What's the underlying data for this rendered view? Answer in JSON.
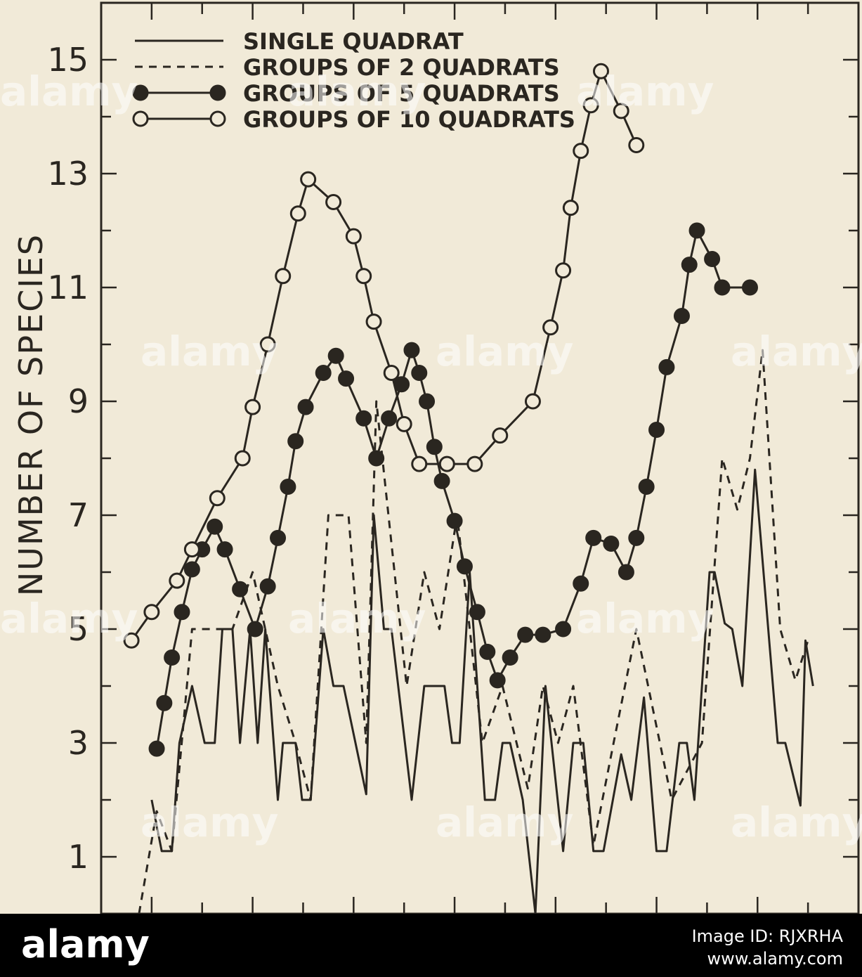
{
  "chart_data": {
    "type": "line",
    "title": "",
    "xlabel": "",
    "ylabel": "NUMBER OF SPECIES",
    "ylim": [
      0,
      16
    ],
    "y_ticks": [
      "1",
      "3",
      "5",
      "7",
      "9",
      "11",
      "13",
      "15"
    ],
    "grid": false,
    "legend_position": "top-left",
    "series": [
      {
        "name": "SINGLE QUADRAT",
        "style": "solid",
        "marker": "none",
        "points": [
          [
            1.0,
            2
          ],
          [
            1.2,
            1.1
          ],
          [
            1.4,
            1.1
          ],
          [
            1.55,
            3
          ],
          [
            1.8,
            4
          ],
          [
            2.05,
            3
          ],
          [
            2.25,
            3
          ],
          [
            2.4,
            5
          ],
          [
            2.6,
            5
          ],
          [
            2.75,
            3
          ],
          [
            2.95,
            5
          ],
          [
            3.1,
            3
          ],
          [
            3.25,
            5
          ],
          [
            3.5,
            2
          ],
          [
            3.6,
            3
          ],
          [
            3.85,
            3
          ],
          [
            3.98,
            2
          ],
          [
            4.15,
            2
          ],
          [
            4.4,
            5
          ],
          [
            4.6,
            4
          ],
          [
            4.8,
            4
          ],
          [
            5.25,
            2.1
          ],
          [
            5.4,
            7
          ],
          [
            5.6,
            5
          ],
          [
            5.75,
            5
          ],
          [
            6.15,
            2
          ],
          [
            6.4,
            4
          ],
          [
            6.8,
            4
          ],
          [
            6.95,
            3
          ],
          [
            7.1,
            3
          ],
          [
            7.3,
            6
          ],
          [
            7.6,
            2
          ],
          [
            7.8,
            2
          ],
          [
            7.95,
            3
          ],
          [
            8.1,
            3
          ],
          [
            8.35,
            2
          ],
          [
            8.6,
            0
          ],
          [
            8.8,
            4
          ],
          [
            9.15,
            1.1
          ],
          [
            9.35,
            3
          ],
          [
            9.55,
            3
          ],
          [
            9.75,
            1.1
          ],
          [
            9.95,
            1.1
          ],
          [
            10.3,
            2.8
          ],
          [
            10.5,
            2
          ],
          [
            10.75,
            3.8
          ],
          [
            11.0,
            1.1
          ],
          [
            11.2,
            1.1
          ],
          [
            11.45,
            3
          ],
          [
            11.6,
            3
          ],
          [
            11.75,
            2
          ],
          [
            12.05,
            6
          ],
          [
            12.15,
            6
          ],
          [
            12.35,
            5.1
          ],
          [
            12.5,
            5
          ],
          [
            12.7,
            4
          ],
          [
            12.95,
            7.8
          ],
          [
            13.4,
            3
          ],
          [
            13.55,
            3
          ],
          [
            13.85,
            1.9
          ],
          [
            13.95,
            4.8
          ],
          [
            14.1,
            4
          ]
        ]
      },
      {
        "name": "GROUPS OF 2 QUADRATS",
        "style": "dashed",
        "marker": "none",
        "points": [
          [
            0.75,
            0
          ],
          [
            1.1,
            1.8
          ],
          [
            1.4,
            1.1
          ],
          [
            1.8,
            5
          ],
          [
            2.6,
            5
          ],
          [
            3.0,
            6
          ],
          [
            3.5,
            4
          ],
          [
            3.85,
            3
          ],
          [
            4.15,
            2
          ],
          [
            4.5,
            7
          ],
          [
            4.9,
            7
          ],
          [
            5.25,
            3
          ],
          [
            5.45,
            9
          ],
          [
            6.05,
            4
          ],
          [
            6.4,
            6
          ],
          [
            6.7,
            5
          ],
          [
            7.05,
            7
          ],
          [
            7.55,
            3
          ],
          [
            7.95,
            4
          ],
          [
            8.45,
            2.2
          ],
          [
            8.75,
            4
          ],
          [
            9.05,
            3
          ],
          [
            9.35,
            4
          ],
          [
            9.75,
            1.2
          ],
          [
            10.15,
            3
          ],
          [
            10.6,
            5
          ],
          [
            11.3,
            2
          ],
          [
            11.9,
            3
          ],
          [
            12.3,
            8
          ],
          [
            12.6,
            7.1
          ],
          [
            12.85,
            8
          ],
          [
            13.1,
            9.9
          ],
          [
            13.45,
            5
          ],
          [
            13.75,
            4.1
          ],
          [
            14.0,
            4.8
          ]
        ]
      },
      {
        "name": "GROUPS OF 5 QUADRATS",
        "style": "solid",
        "marker": "filled-circle",
        "points": [
          [
            1.1,
            2.9
          ],
          [
            1.25,
            3.7
          ],
          [
            1.4,
            4.5
          ],
          [
            1.6,
            5.3
          ],
          [
            1.8,
            6.05
          ],
          [
            2.0,
            6.4
          ],
          [
            2.25,
            6.8
          ],
          [
            2.45,
            6.4
          ],
          [
            2.75,
            5.7
          ],
          [
            3.05,
            5
          ],
          [
            3.3,
            5.75
          ],
          [
            3.5,
            6.6
          ],
          [
            3.7,
            7.5
          ],
          [
            3.85,
            8.3
          ],
          [
            4.05,
            8.9
          ],
          [
            4.4,
            9.5
          ],
          [
            4.65,
            9.8
          ],
          [
            4.85,
            9.4
          ],
          [
            5.2,
            8.7
          ],
          [
            5.45,
            8
          ],
          [
            5.7,
            8.7
          ],
          [
            5.95,
            9.3
          ],
          [
            6.15,
            9.9
          ],
          [
            6.3,
            9.5
          ],
          [
            6.45,
            9
          ],
          [
            6.6,
            8.2
          ],
          [
            6.75,
            7.6
          ],
          [
            7.0,
            6.9
          ],
          [
            7.2,
            6.1
          ],
          [
            7.45,
            5.3
          ],
          [
            7.65,
            4.6
          ],
          [
            7.85,
            4.1
          ],
          [
            8.1,
            4.5
          ],
          [
            8.4,
            4.9
          ],
          [
            8.75,
            4.9
          ],
          [
            9.15,
            5
          ],
          [
            9.5,
            5.8
          ],
          [
            9.75,
            6.6
          ],
          [
            10.1,
            6.5
          ],
          [
            10.4,
            6
          ],
          [
            10.6,
            6.6
          ],
          [
            10.8,
            7.5
          ],
          [
            11.0,
            8.5
          ],
          [
            11.2,
            9.6
          ],
          [
            11.5,
            10.5
          ],
          [
            11.65,
            11.4
          ],
          [
            11.8,
            12
          ],
          [
            12.1,
            11.5
          ],
          [
            12.3,
            11
          ],
          [
            12.85,
            11
          ]
        ]
      },
      {
        "name": "GROUPS OF 10 QUADRATS",
        "style": "solid",
        "marker": "open-circle",
        "points": [
          [
            0.6,
            4.8
          ],
          [
            1.0,
            5.3
          ],
          [
            1.5,
            5.85
          ],
          [
            1.8,
            6.4
          ],
          [
            2.3,
            7.3
          ],
          [
            2.8,
            8
          ],
          [
            3.0,
            8.9
          ],
          [
            3.3,
            10
          ],
          [
            3.6,
            11.2
          ],
          [
            3.9,
            12.3
          ],
          [
            4.1,
            12.9
          ],
          [
            4.6,
            12.5
          ],
          [
            5.0,
            11.9
          ],
          [
            5.2,
            11.2
          ],
          [
            5.4,
            10.4
          ],
          [
            5.75,
            9.5
          ],
          [
            6.0,
            8.6
          ],
          [
            6.3,
            7.9
          ],
          [
            6.85,
            7.9
          ],
          [
            7.4,
            7.9
          ],
          [
            7.9,
            8.4
          ],
          [
            8.55,
            9
          ],
          [
            8.9,
            10.3
          ],
          [
            9.15,
            11.3
          ],
          [
            9.3,
            12.4
          ],
          [
            9.5,
            13.4
          ],
          [
            9.7,
            14.2
          ],
          [
            9.9,
            14.8
          ],
          [
            10.3,
            14.1
          ],
          [
            10.6,
            13.5
          ]
        ]
      }
    ]
  },
  "watermark": {
    "text": "alamy"
  },
  "banner": {
    "logo": "alamy",
    "meta_line1": "Image ID: RJXRHA",
    "meta_line2": "www.alamy.com"
  },
  "colors": {
    "background": "#f1ead8",
    "ink": "#2a2620",
    "banner": "#000000"
  }
}
